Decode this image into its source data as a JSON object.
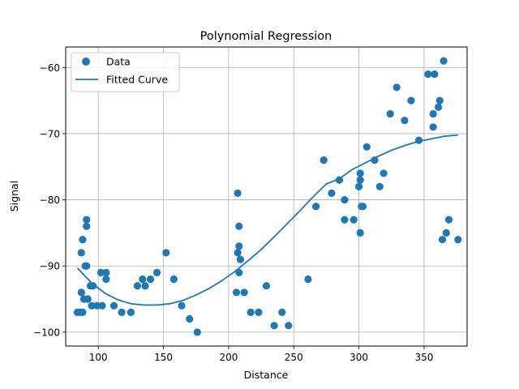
{
  "chart_data": {
    "type": "scatter",
    "title": "Polynomial Regression",
    "xlabel": "Distance",
    "ylabel": "Signal",
    "xlim": [
      75,
      383
    ],
    "ylim": [
      -102.1,
      -56.9
    ],
    "x_ticks": [
      100,
      150,
      200,
      250,
      300,
      350
    ],
    "y_ticks": [
      -100,
      -90,
      -80,
      -70,
      -60
    ],
    "x_tick_labels": [
      "100",
      "150",
      "200",
      "250",
      "300",
      "350"
    ],
    "y_tick_labels": [
      "−100",
      "−90",
      "−80",
      "−70",
      "−60"
    ],
    "grid": true,
    "legend": {
      "position": "top-left",
      "entries": [
        "Data",
        "Fitted Curve"
      ]
    },
    "colors": {
      "series": "#1f77b4"
    },
    "series": [
      {
        "name": "Data",
        "kind": "scatter",
        "points": [
          [
            84,
            -97
          ],
          [
            86,
            -97
          ],
          [
            87,
            -88
          ],
          [
            87,
            -94
          ],
          [
            88,
            -97
          ],
          [
            88,
            -86
          ],
          [
            89,
            -95
          ],
          [
            90,
            -90
          ],
          [
            91,
            -90
          ],
          [
            91,
            -83
          ],
          [
            91,
            -84
          ],
          [
            92,
            -95
          ],
          [
            94,
            -93
          ],
          [
            95,
            -96
          ],
          [
            96,
            -93
          ],
          [
            99,
            -96
          ],
          [
            102,
            -91
          ],
          [
            103,
            -96
          ],
          [
            106,
            -91
          ],
          [
            106,
            -92
          ],
          [
            112,
            -96
          ],
          [
            118,
            -97
          ],
          [
            125,
            -97
          ],
          [
            130,
            -93
          ],
          [
            134,
            -92
          ],
          [
            136,
            -93
          ],
          [
            140,
            -92
          ],
          [
            145,
            -91
          ],
          [
            152,
            -88
          ],
          [
            158,
            -92
          ],
          [
            164,
            -96
          ],
          [
            170,
            -98
          ],
          [
            176,
            -100
          ],
          [
            206,
            -94
          ],
          [
            207,
            -79
          ],
          [
            207,
            -88
          ],
          [
            208,
            -91
          ],
          [
            208,
            -84
          ],
          [
            208,
            -87
          ],
          [
            209,
            -89
          ],
          [
            212,
            -94
          ],
          [
            217,
            -97
          ],
          [
            223,
            -97
          ],
          [
            229,
            -93
          ],
          [
            235,
            -99
          ],
          [
            241,
            -97
          ],
          [
            246,
            -99
          ],
          [
            261,
            -92
          ],
          [
            267,
            -81
          ],
          [
            273,
            -74
          ],
          [
            279,
            -79
          ],
          [
            285,
            -77
          ],
          [
            289,
            -80
          ],
          [
            289,
            -83
          ],
          [
            296,
            -83
          ],
          [
            300,
            -78
          ],
          [
            301,
            -77
          ],
          [
            301,
            -76
          ],
          [
            301,
            -85
          ],
          [
            302,
            -81
          ],
          [
            303,
            -81
          ],
          [
            306,
            -72
          ],
          [
            312,
            -74
          ],
          [
            316,
            -78
          ],
          [
            319,
            -76
          ],
          [
            324,
            -67
          ],
          [
            329,
            -63
          ],
          [
            335,
            -68
          ],
          [
            340,
            -65
          ],
          [
            346,
            -71
          ],
          [
            353,
            -61
          ],
          [
            357,
            -69
          ],
          [
            357,
            -67
          ],
          [
            358,
            -61
          ],
          [
            361,
            -66
          ],
          [
            362,
            -65
          ],
          [
            364,
            -86
          ],
          [
            365,
            -59
          ],
          [
            367,
            -85
          ],
          [
            369,
            -83
          ],
          [
            376,
            -86
          ]
        ]
      },
      {
        "name": "Fitted Curve",
        "kind": "line",
        "points": [
          [
            84,
            -90.3
          ],
          [
            95,
            -92.6
          ],
          [
            105,
            -94.1
          ],
          [
            115,
            -95.1
          ],
          [
            125,
            -95.7
          ],
          [
            135,
            -95.9
          ],
          [
            145,
            -95.9
          ],
          [
            155,
            -95.7
          ],
          [
            165,
            -95.2
          ],
          [
            175,
            -94.4
          ],
          [
            185,
            -93.4
          ],
          [
            195,
            -92.2
          ],
          [
            205,
            -90.8
          ],
          [
            215,
            -89.2
          ],
          [
            225,
            -87.5
          ],
          [
            235,
            -85.6
          ],
          [
            245,
            -83.6
          ],
          [
            255,
            -81.6
          ],
          [
            265,
            -79.5
          ],
          [
            275,
            -77.6
          ],
          [
            285,
            -76.8
          ],
          [
            295,
            -75.4
          ],
          [
            305,
            -74.4
          ],
          [
            315,
            -73.4
          ],
          [
            325,
            -72.5
          ],
          [
            335,
            -71.8
          ],
          [
            345,
            -71.2
          ],
          [
            355,
            -70.8
          ],
          [
            365,
            -70.4
          ],
          [
            376,
            -70.2
          ]
        ]
      }
    ]
  }
}
